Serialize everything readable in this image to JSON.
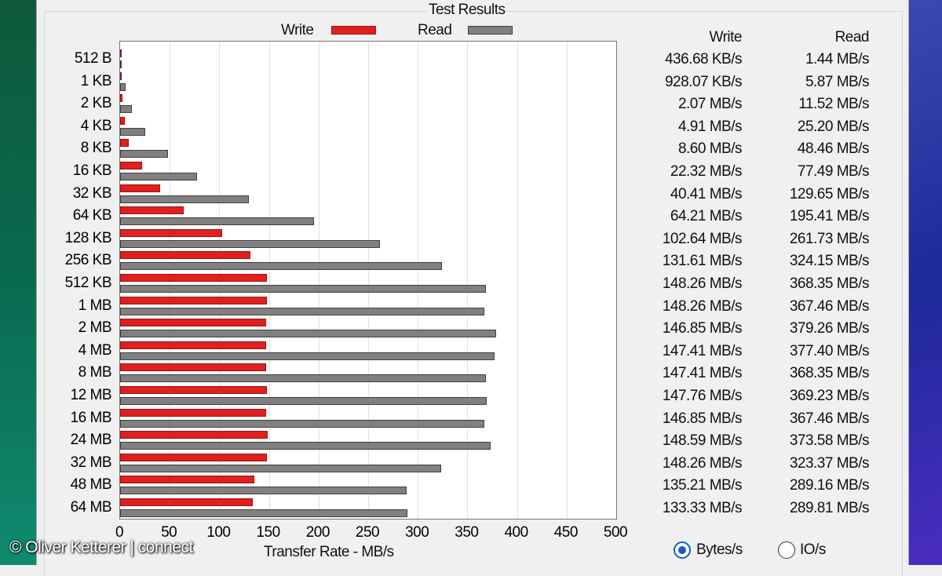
{
  "chart_data": {
    "type": "bar",
    "title": "Test Results",
    "xlabel": "Transfer Rate - MB/s",
    "xlim": [
      0,
      500
    ],
    "xticks": [
      "0",
      "50",
      "100",
      "150",
      "200",
      "250",
      "300",
      "350",
      "400",
      "450",
      "500"
    ],
    "grid": true,
    "legend": "top",
    "colors": {
      "write": "#e02020",
      "read": "#808080"
    },
    "categories": [
      "512 B",
      "1 KB",
      "2 KB",
      "4 KB",
      "8 KB",
      "16 KB",
      "32 KB",
      "64 KB",
      "128 KB",
      "256 KB",
      "512 KB",
      "1 MB",
      "2 MB",
      "4 MB",
      "8 MB",
      "12 MB",
      "16 MB",
      "24 MB",
      "32 MB",
      "48 MB",
      "64 MB"
    ],
    "series": [
      {
        "name": "Write",
        "values": [
          0.43,
          0.91,
          2.07,
          4.91,
          8.6,
          22.32,
          40.41,
          64.21,
          102.64,
          131.61,
          148.26,
          148.26,
          146.85,
          147.41,
          147.41,
          147.76,
          146.85,
          148.59,
          148.26,
          135.21,
          133.33
        ]
      },
      {
        "name": "Read",
        "values": [
          1.44,
          5.87,
          11.52,
          25.2,
          48.46,
          77.49,
          129.65,
          195.41,
          261.73,
          324.15,
          368.35,
          367.46,
          379.26,
          377.4,
          368.35,
          369.23,
          367.46,
          373.58,
          323.37,
          289.16,
          289.81
        ]
      }
    ]
  },
  "table": {
    "write_header": "Write",
    "read_header": "Read",
    "write": [
      "436.68 KB/s",
      "928.07 KB/s",
      "2.07 MB/s",
      "4.91 MB/s",
      "8.60 MB/s",
      "22.32 MB/s",
      "40.41 MB/s",
      "64.21 MB/s",
      "102.64 MB/s",
      "131.61 MB/s",
      "148.26 MB/s",
      "148.26 MB/s",
      "146.85 MB/s",
      "147.41 MB/s",
      "147.41 MB/s",
      "147.76 MB/s",
      "146.85 MB/s",
      "148.59 MB/s",
      "148.26 MB/s",
      "135.21 MB/s",
      "133.33 MB/s"
    ],
    "read": [
      "1.44 MB/s",
      "5.87 MB/s",
      "11.52 MB/s",
      "25.20 MB/s",
      "48.46 MB/s",
      "77.49 MB/s",
      "129.65 MB/s",
      "195.41 MB/s",
      "261.73 MB/s",
      "324.15 MB/s",
      "368.35 MB/s",
      "367.46 MB/s",
      "379.26 MB/s",
      "377.40 MB/s",
      "368.35 MB/s",
      "369.23 MB/s",
      "367.46 MB/s",
      "373.58 MB/s",
      "323.37 MB/s",
      "289.16 MB/s",
      "289.81 MB/s"
    ]
  },
  "units": {
    "options": [
      "Bytes/s",
      "IO/s"
    ],
    "selected": "Bytes/s"
  },
  "watermark": "© Oliver Ketterer | connect"
}
